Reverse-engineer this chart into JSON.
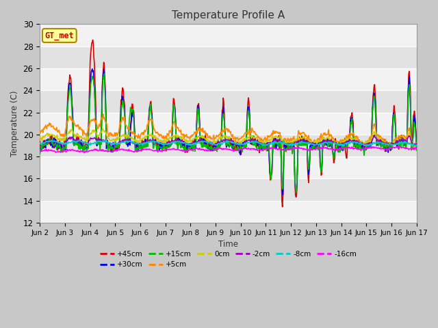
{
  "title": "Temperature Profile A",
  "xlabel": "Time",
  "ylabel": "Temperature (C)",
  "ylim": [
    12,
    30
  ],
  "yticks": [
    12,
    14,
    16,
    18,
    20,
    22,
    24,
    26,
    28,
    30
  ],
  "xtick_labels": [
    "Jun 2",
    "Jun 3",
    "Jun 4",
    "Jun 5",
    "Jun 6",
    "Jun 7",
    "Jun 8",
    "Jun 9",
    "Jun 10",
    "Jun 11",
    "Jun 12",
    "Jun 13",
    "Jun 14",
    "Jun 15",
    "Jun 16",
    "Jun 17"
  ],
  "n_days": 15,
  "pts_per_day": 48,
  "annotation_text": "GT_met",
  "annotation_color": "#cc0000",
  "annotation_bg": "#ffff99",
  "annotation_border": "#aa8800",
  "series": [
    {
      "label": "+45cm",
      "color": "#dd0000",
      "lw": 1.2
    },
    {
      "label": "+30cm",
      "color": "#0000ee",
      "lw": 1.2
    },
    {
      "label": "+15cm",
      "color": "#00bb00",
      "lw": 1.2
    },
    {
      "label": "+5cm",
      "color": "#ff8800",
      "lw": 1.2
    },
    {
      "label": "0cm",
      "color": "#cccc00",
      "lw": 1.2
    },
    {
      "label": "-2cm",
      "color": "#9900bb",
      "lw": 1.2
    },
    {
      "label": "-8cm",
      "color": "#00cccc",
      "lw": 1.2
    },
    {
      "label": "-16cm",
      "color": "#ff00ff",
      "lw": 1.2
    }
  ],
  "band_colors": [
    "#f2f2f2",
    "#e2e2e2",
    "#f2f2f2",
    "#e2e2e2",
    "#f2f2f2",
    "#e2e2e2",
    "#f2f2f2",
    "#e2e2e2",
    "#f2f2f2"
  ]
}
